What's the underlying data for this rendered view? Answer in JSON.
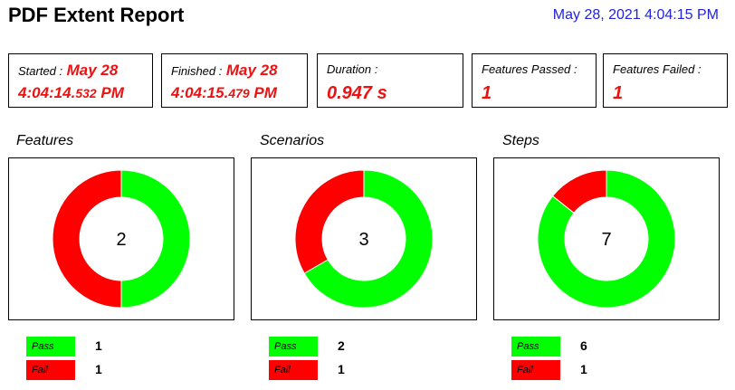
{
  "header": {
    "title": "PDF Extent Report",
    "timestamp": "May 28, 2021 4:04:15 PM"
  },
  "stats": {
    "started": {
      "label": "Started :",
      "date": "May 28",
      "time_main": "4:04:14.",
      "time_ms": "532",
      "time_suffix": " PM"
    },
    "finished": {
      "label": "Finished :",
      "date": "May 28",
      "time_main": "4:04:15.",
      "time_ms": "479",
      "time_suffix": " PM"
    },
    "duration": {
      "label": "Duration :",
      "value": "0.947 s"
    },
    "features_passed": {
      "label": "Features Passed :",
      "value": "1"
    },
    "features_failed": {
      "label": "Features Failed :",
      "value": "1"
    }
  },
  "colors": {
    "pass": "#00ff00",
    "fail": "#ff0000"
  },
  "chart_data": [
    {
      "type": "pie",
      "title": "Features",
      "total": "2",
      "labels": [
        "Pass",
        "Fail"
      ],
      "values": [
        1,
        1
      ]
    },
    {
      "type": "pie",
      "title": "Scenarios",
      "total": "3",
      "labels": [
        "Pass",
        "Fail"
      ],
      "values": [
        2,
        1
      ]
    },
    {
      "type": "pie",
      "title": "Steps",
      "total": "7",
      "labels": [
        "Pass",
        "Fail"
      ],
      "values": [
        6,
        1
      ]
    }
  ]
}
